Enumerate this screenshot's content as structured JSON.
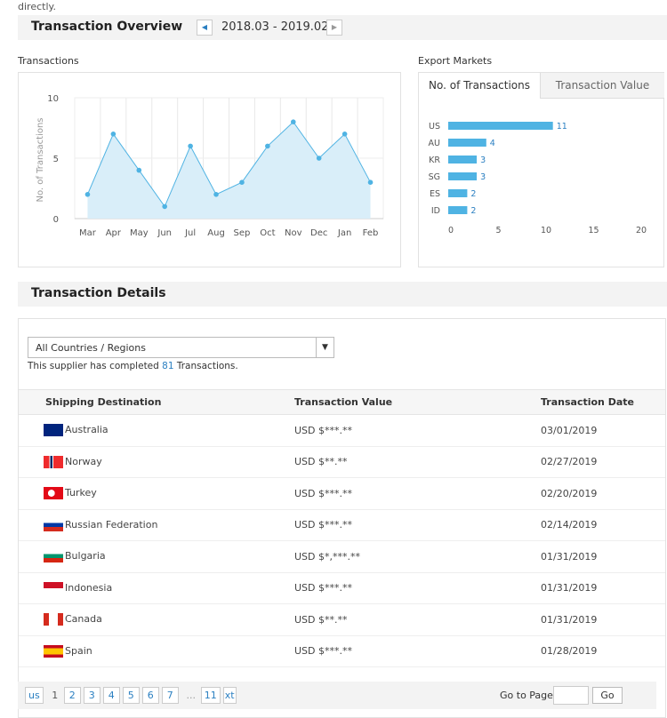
{
  "top_note": "directly.",
  "overview": {
    "title": "Transaction Overview",
    "date_range": "2018.03 - 2019.02",
    "prev_icon": "caret-left-icon",
    "next_icon": "caret-right-icon"
  },
  "chart_data": [
    {
      "type": "area",
      "title": "Transactions",
      "ylabel": "No. of Transactions",
      "categories": [
        "Mar",
        "Apr",
        "May",
        "Jun",
        "Jul",
        "Aug",
        "Sep",
        "Oct",
        "Nov",
        "Dec",
        "Jan",
        "Feb"
      ],
      "values": [
        2,
        7,
        4,
        1,
        6,
        2,
        3,
        6,
        8,
        5,
        7,
        3
      ],
      "ylim": [
        0,
        10
      ],
      "yticks": [
        "0",
        "5",
        "10"
      ],
      "grid": true,
      "color": "#4fb3e3"
    },
    {
      "type": "bar",
      "orientation": "horizontal",
      "title": "Export Markets",
      "categories": [
        "US",
        "AU",
        "KR",
        "SG",
        "ES",
        "ID"
      ],
      "values": [
        11,
        4,
        3,
        3,
        2,
        2
      ],
      "xlim": [
        0,
        20
      ],
      "xticks": [
        "0",
        "5",
        "10",
        "15",
        "20"
      ],
      "color": "#4fb3e3"
    }
  ],
  "export_tabs": [
    {
      "label": "No. of Transactions",
      "active": true
    },
    {
      "label": "Transaction Value",
      "active": false
    }
  ],
  "details": {
    "title": "Transaction Details",
    "filter": "All Countries / Regions",
    "summary_pre": "This supplier has completed ",
    "summary_count": "81",
    "summary_post": " Transactions.",
    "columns": [
      "Shipping Destination",
      "Transaction Value",
      "Transaction Date"
    ],
    "rows": [
      {
        "country": "Australia",
        "value": "USD $***.**",
        "date": "03/01/2019",
        "flag": "au"
      },
      {
        "country": "Norway",
        "value": "USD $**.**",
        "date": "02/27/2019",
        "flag": "no"
      },
      {
        "country": "Turkey",
        "value": "USD $***.**",
        "date": "02/20/2019",
        "flag": "tr"
      },
      {
        "country": "Russian Federation",
        "value": "USD $***.**",
        "date": "02/14/2019",
        "flag": "ru"
      },
      {
        "country": "Bulgaria",
        "value": "USD $*,***.**",
        "date": "01/31/2019",
        "flag": "bg"
      },
      {
        "country": "Indonesia",
        "value": "USD $***.**",
        "date": "01/31/2019",
        "flag": "id"
      },
      {
        "country": "Canada",
        "value": "USD $**.**",
        "date": "01/31/2019",
        "flag": "ca"
      },
      {
        "country": "Spain",
        "value": "USD $***.**",
        "date": "01/28/2019",
        "flag": "es"
      }
    ]
  },
  "pagination": {
    "prev": "us",
    "current": "1",
    "pages": [
      "2",
      "3",
      "4",
      "5",
      "6",
      "7"
    ],
    "ellipsis": "...",
    "last": "11",
    "next": "xt",
    "goto_label": "Go to Page",
    "goto_value": "",
    "go": "Go"
  }
}
